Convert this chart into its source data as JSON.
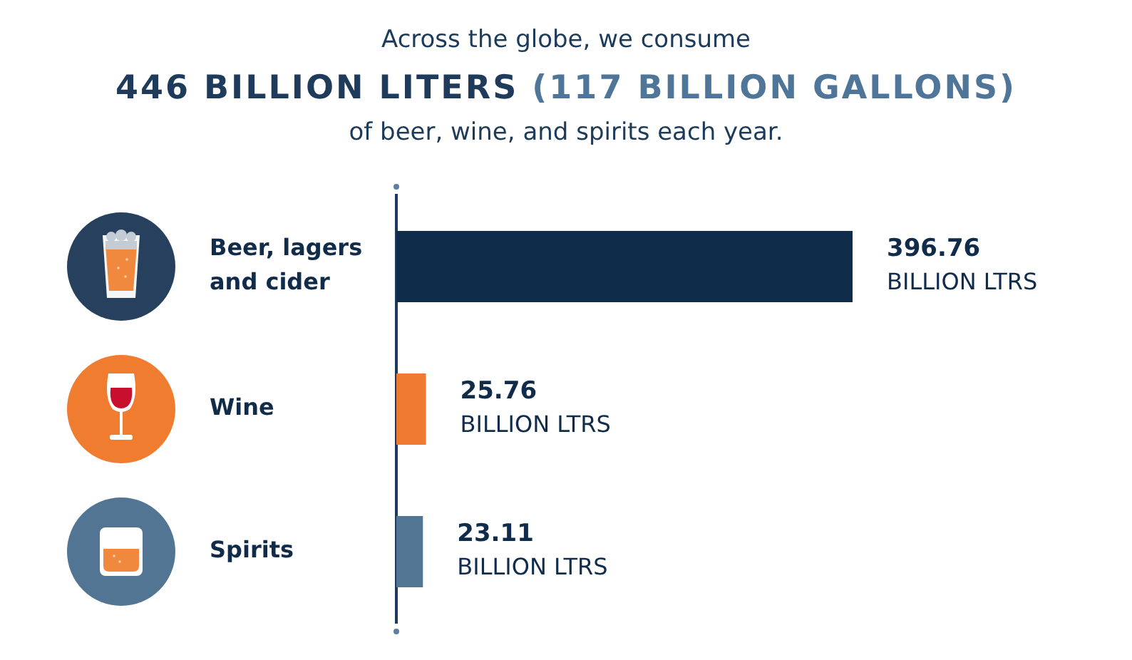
{
  "chart_data": {
    "type": "bar",
    "orientation": "horizontal",
    "title": "Across the globe, we consume\n446 BILLION LITERS (117 BILLION GALLONS)\nof beer, wine, and spirits each year.",
    "categories": [
      "Beer, lagers and cider",
      "Wine",
      "Spirits"
    ],
    "values": [
      396.76,
      25.76,
      23.11
    ],
    "colors": [
      "#0f2d4a",
      "#f07a32",
      "#527594"
    ],
    "value_labels": [
      "396.76\nBILLION LTRS",
      "25.76\nBILLION LTRS",
      "23.11\nBILLION LTRS"
    ]
  }
}
